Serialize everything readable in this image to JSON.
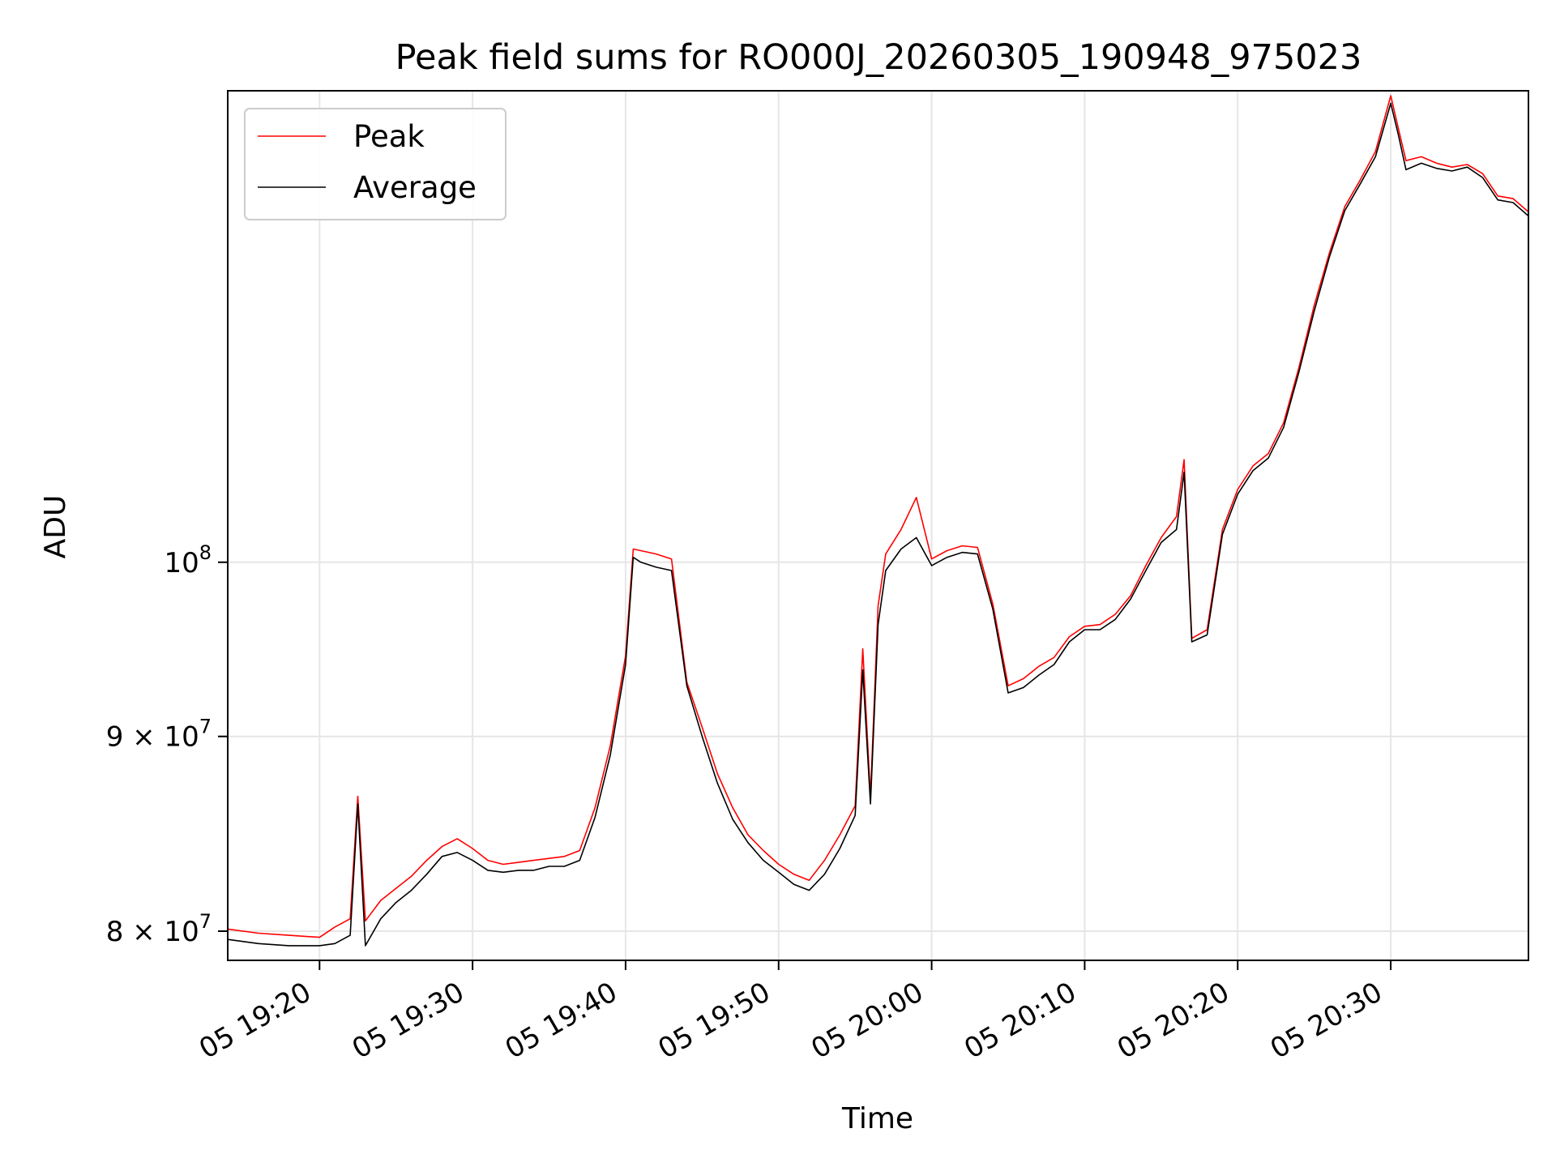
{
  "chart_data": {
    "type": "line",
    "title": "Peak field sums for RO000J_20260305_190948_975023",
    "xlabel": "Time",
    "ylabel": "ADU",
    "yscale": "log",
    "xlim": [
      "05 19:14",
      "05 20:39"
    ],
    "ylim": [
      78600000,
      133000000
    ],
    "grid": true,
    "legend_position": "top-left",
    "x_tick_labels": [
      "05 19:20",
      "05 19:30",
      "05 19:40",
      "05 19:50",
      "05 20:00",
      "05 20:10",
      "05 20:20",
      "05 20:30"
    ],
    "y_ticks": [
      {
        "value": 80000000,
        "mant": "8",
        "mid": " × 10",
        "exp": "7"
      },
      {
        "value": 90000000,
        "mant": "9",
        "mid": " × 10",
        "exp": "7"
      },
      {
        "value": 100000000,
        "mant": "",
        "mid": "10",
        "exp": "8"
      }
    ],
    "series": [
      {
        "name": "Peak",
        "color": "#ff0000",
        "x": [
          "05 19:14",
          "05 19:16",
          "05 19:18",
          "05 19:20",
          "05 19:21",
          "05 19:22",
          "05 19:22:30",
          "05 19:23",
          "05 19:24",
          "05 19:25",
          "05 19:26",
          "05 19:27",
          "05 19:28",
          "05 19:29",
          "05 19:30",
          "05 19:31",
          "05 19:32",
          "05 19:33",
          "05 19:34",
          "05 19:35",
          "05 19:36",
          "05 19:37",
          "05 19:38",
          "05 19:39",
          "05 19:40",
          "05 19:40:30",
          "05 19:41",
          "05 19:42",
          "05 19:43",
          "05 19:44",
          "05 19:45",
          "05 19:46",
          "05 19:47",
          "05 19:48",
          "05 19:49",
          "05 19:50",
          "05 19:51",
          "05 19:52",
          "05 19:53",
          "05 19:54",
          "05 19:55",
          "05 19:55:30",
          "05 19:56",
          "05 19:56:30",
          "05 19:57",
          "05 19:58",
          "05 19:59",
          "05 20:00",
          "05 20:01",
          "05 20:02",
          "05 20:03",
          "05 20:04",
          "05 20:05",
          "05 20:06",
          "05 20:07",
          "05 20:08",
          "05 20:09",
          "05 20:10",
          "05 20:11",
          "05 20:12",
          "05 20:13",
          "05 20:14",
          "05 20:15",
          "05 20:16",
          "05 20:16:30",
          "05 20:17",
          "05 20:18",
          "05 20:19",
          "05 20:20",
          "05 20:21",
          "05 20:22",
          "05 20:23",
          "05 20:24",
          "05 20:25",
          "05 20:26",
          "05 20:27",
          "05 20:28",
          "05 20:29",
          "05 20:30",
          "05 20:30:30",
          "05 20:31",
          "05 20:32",
          "05 20:33",
          "05 20:34",
          "05 20:35",
          "05 20:36",
          "05 20:37",
          "05 20:38",
          "05 20:39"
        ],
        "y": [
          80100000,
          79900000,
          79800000,
          79700000,
          80200000,
          80600000,
          86800000,
          80500000,
          81500000,
          82100000,
          82700000,
          83500000,
          84200000,
          84600000,
          84100000,
          83500000,
          83300000,
          83400000,
          83500000,
          83600000,
          83700000,
          84000000,
          86200000,
          89500000,
          94500000,
          100800000,
          100700000,
          100500000,
          100200000,
          93000000,
          90500000,
          88000000,
          86200000,
          84800000,
          84000000,
          83300000,
          82800000,
          82500000,
          83500000,
          84800000,
          86300000,
          94900000,
          86800000,
          97400000,
          100500000,
          102000000,
          104000000,
          100200000,
          100700000,
          101000000,
          100900000,
          97500000,
          92800000,
          93200000,
          93900000,
          94400000,
          95600000,
          96200000,
          96300000,
          96900000,
          98000000,
          99800000,
          101500000,
          102800000,
          106400000,
          95500000,
          96000000,
          102000000,
          104500000,
          106000000,
          106800000,
          108800000,
          112500000,
          116800000,
          120600000,
          124000000,
          126000000,
          128200000,
          132600000,
          130000000,
          127500000,
          127800000,
          127300000,
          127000000,
          127200000,
          126500000,
          124800000,
          124600000,
          123600000
        ]
      },
      {
        "name": "Average",
        "color": "#000000",
        "x": [
          "05 19:14",
          "05 19:16",
          "05 19:18",
          "05 19:20",
          "05 19:21",
          "05 19:22",
          "05 19:22:30",
          "05 19:23",
          "05 19:24",
          "05 19:25",
          "05 19:26",
          "05 19:27",
          "05 19:28",
          "05 19:29",
          "05 19:30",
          "05 19:31",
          "05 19:32",
          "05 19:33",
          "05 19:34",
          "05 19:35",
          "05 19:36",
          "05 19:37",
          "05 19:38",
          "05 19:39",
          "05 19:40",
          "05 19:40:30",
          "05 19:41",
          "05 19:42",
          "05 19:43",
          "05 19:44",
          "05 19:45",
          "05 19:46",
          "05 19:47",
          "05 19:48",
          "05 19:49",
          "05 19:50",
          "05 19:51",
          "05 19:52",
          "05 19:53",
          "05 19:54",
          "05 19:55",
          "05 19:55:30",
          "05 19:56",
          "05 19:56:30",
          "05 19:57",
          "05 19:58",
          "05 19:59",
          "05 20:00",
          "05 20:01",
          "05 20:02",
          "05 20:03",
          "05 20:04",
          "05 20:05",
          "05 20:06",
          "05 20:07",
          "05 20:08",
          "05 20:09",
          "05 20:10",
          "05 20:11",
          "05 20:12",
          "05 20:13",
          "05 20:14",
          "05 20:15",
          "05 20:16",
          "05 20:16:30",
          "05 20:17",
          "05 20:18",
          "05 20:19",
          "05 20:20",
          "05 20:21",
          "05 20:22",
          "05 20:23",
          "05 20:24",
          "05 20:25",
          "05 20:26",
          "05 20:27",
          "05 20:28",
          "05 20:29",
          "05 20:30",
          "05 20:30:30",
          "05 20:31",
          "05 20:32",
          "05 20:33",
          "05 20:34",
          "05 20:35",
          "05 20:36",
          "05 20:37",
          "05 20:38",
          "05 20:39"
        ],
        "y": [
          79600000,
          79400000,
          79300000,
          79300000,
          79400000,
          79800000,
          86400000,
          79300000,
          80600000,
          81400000,
          82000000,
          82800000,
          83700000,
          83900000,
          83500000,
          83000000,
          82900000,
          83000000,
          83000000,
          83200000,
          83200000,
          83500000,
          85700000,
          89000000,
          94000000,
          100300000,
          100000000,
          99700000,
          99500000,
          92800000,
          90000000,
          87500000,
          85600000,
          84400000,
          83500000,
          82900000,
          82300000,
          82000000,
          82800000,
          84100000,
          85800000,
          93700000,
          86400000,
          96300000,
          99500000,
          100800000,
          101500000,
          99800000,
          100300000,
          100600000,
          100500000,
          97200000,
          92400000,
          92700000,
          93400000,
          94000000,
          95300000,
          96000000,
          96000000,
          96600000,
          97800000,
          99500000,
          101200000,
          102000000,
          105600000,
          95300000,
          95700000,
          101700000,
          104200000,
          105700000,
          106500000,
          108500000,
          112200000,
          116400000,
          120300000,
          123700000,
          125700000,
          127800000,
          132000000,
          129500000,
          126800000,
          127300000,
          126900000,
          126700000,
          127000000,
          126200000,
          124500000,
          124300000,
          123300000
        ]
      }
    ]
  }
}
